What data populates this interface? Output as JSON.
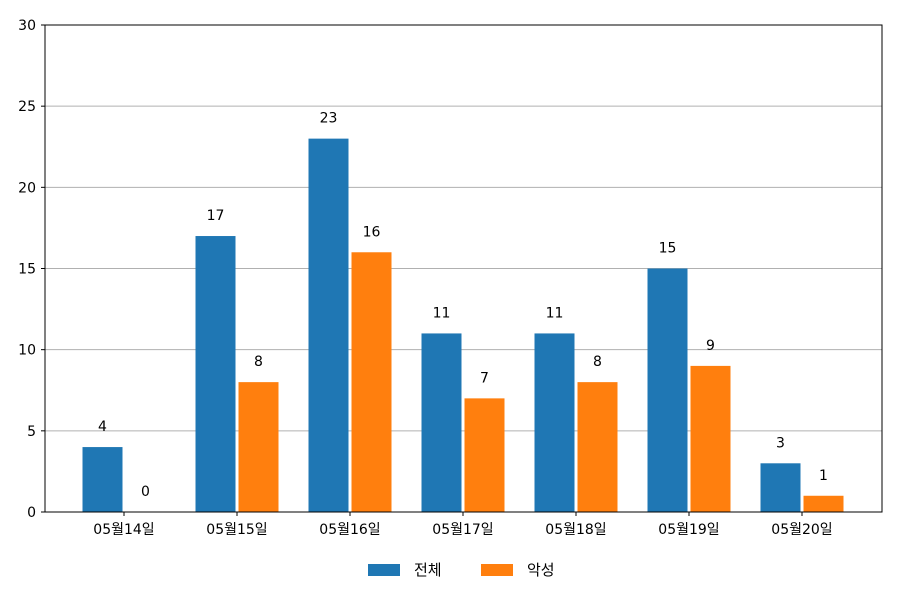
{
  "chart_data": {
    "type": "bar",
    "categories": [
      "05월14일",
      "05월15일",
      "05월16일",
      "05월17일",
      "05월18일",
      "05월19일",
      "05월20일"
    ],
    "series": [
      {
        "name": "전체",
        "values": [
          4,
          17,
          23,
          11,
          11,
          15,
          3
        ],
        "color": "#1f77b4"
      },
      {
        "name": "악성",
        "values": [
          0,
          8,
          16,
          7,
          8,
          9,
          1
        ],
        "color": "#ff7f0e"
      }
    ],
    "ylim": [
      0,
      30
    ],
    "yticks": [
      0,
      5,
      10,
      15,
      20,
      25,
      30
    ],
    "grid": true,
    "grid_color": "#b0b0b0",
    "legend_position": "bottom-center"
  }
}
